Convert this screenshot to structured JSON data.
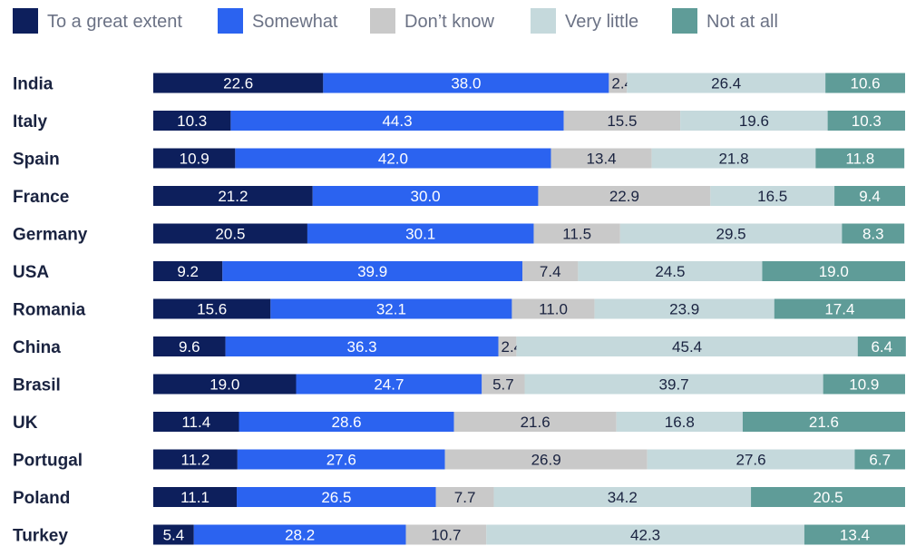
{
  "chart_data": {
    "type": "bar",
    "orientation": "horizontal",
    "stacked": true,
    "title": "",
    "xlabel": "",
    "ylabel": "",
    "xlim": [
      0,
      100
    ],
    "grid": false,
    "legend_position": "top-left",
    "categories": [
      "India",
      "Italy",
      "Spain",
      "France",
      "Germany",
      "USA",
      "Romania",
      "China",
      "Brasil",
      "UK",
      "Portugal",
      "Poland",
      "Turkey"
    ],
    "series": [
      {
        "name": "To a great extent",
        "color": "#0d1f5c",
        "label_color": "#ffffff",
        "values": [
          22.6,
          10.3,
          10.9,
          21.2,
          20.5,
          9.2,
          15.6,
          9.6,
          19.0,
          11.4,
          11.2,
          11.1,
          5.4
        ]
      },
      {
        "name": "Somewhat",
        "color": "#2b63f0",
        "label_color": "#ffffff",
        "values": [
          38.0,
          44.3,
          42.0,
          30.0,
          30.1,
          39.9,
          32.1,
          36.3,
          24.7,
          28.6,
          27.6,
          26.5,
          28.2
        ]
      },
      {
        "name": "Don’t know",
        "color": "#c9c9c9",
        "label_color": "#1a2340",
        "values": [
          2.4,
          15.5,
          13.4,
          22.9,
          11.5,
          7.4,
          11.0,
          2.4,
          5.7,
          21.6,
          26.9,
          7.7,
          10.7
        ]
      },
      {
        "name": "Very little",
        "color": "#c5d9dc",
        "label_color": "#1a2340",
        "values": [
          26.4,
          19.6,
          21.8,
          16.5,
          29.5,
          24.5,
          23.9,
          45.4,
          39.7,
          16.8,
          27.6,
          34.2,
          42.3
        ]
      },
      {
        "name": "Not at all",
        "color": "#5f9c98",
        "label_color": "#ffffff",
        "values": [
          10.6,
          10.3,
          11.8,
          9.4,
          8.3,
          19.0,
          17.4,
          6.4,
          10.9,
          21.6,
          6.7,
          20.5,
          13.4
        ]
      }
    ]
  }
}
